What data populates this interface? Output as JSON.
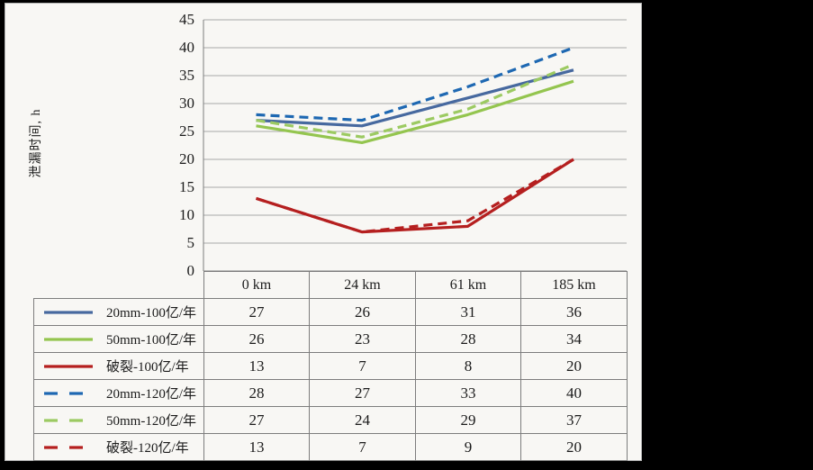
{
  "panel": {
    "background": "#f8f7f4",
    "page_background": "#000000",
    "border_color": "#b3b3b3"
  },
  "colors": {
    "gridline": "#a8a8a8",
    "axis": "#7d7d7d",
    "table_border": "#7d7d7d",
    "text": "#1b1b1b"
  },
  "chart_data": {
    "type": "line",
    "title": "",
    "xlabel": "",
    "ylabel": "泄漏时间, h",
    "categories": [
      "0 km",
      "24 km",
      "61 km",
      "185 km"
    ],
    "ylim": [
      0,
      45
    ],
    "yticks": [
      0,
      5,
      10,
      15,
      20,
      25,
      30,
      35,
      40,
      45
    ],
    "grid": true,
    "legend_position": "left column of data table below chart",
    "series": [
      {
        "name": "20mm-100亿/年",
        "values": [
          27,
          26,
          31,
          36
        ],
        "color": "#47699f",
        "style": "solid"
      },
      {
        "name": "50mm-100亿/年",
        "values": [
          26,
          23,
          28,
          34
        ],
        "color": "#94c54f",
        "style": "solid"
      },
      {
        "name": "破裂-100亿/年",
        "values": [
          13,
          7,
          8,
          20
        ],
        "color": "#b51f1f",
        "style": "solid"
      },
      {
        "name": "20mm-120亿/年",
        "values": [
          28,
          27,
          33,
          40
        ],
        "color": "#1e68b2",
        "style": "dashed"
      },
      {
        "name": "50mm-120亿/年",
        "values": [
          27,
          24,
          29,
          37
        ],
        "color": "#9cca62",
        "style": "dashed"
      },
      {
        "name": "破裂-120亿/年",
        "values": [
          13,
          7,
          9,
          20
        ],
        "color": "#b51f1f",
        "style": "dashed"
      }
    ]
  }
}
